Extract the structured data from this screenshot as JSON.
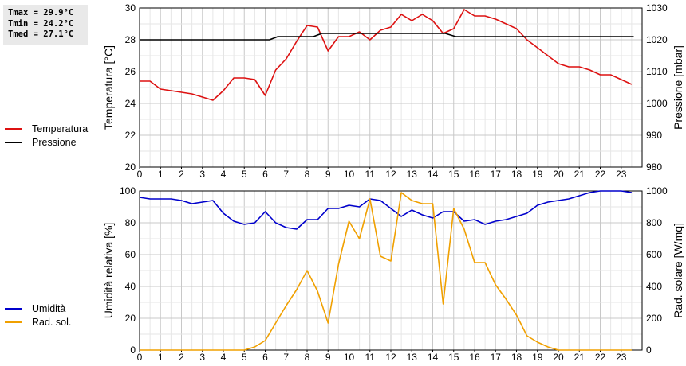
{
  "stats": {
    "tmax": "Tmax = 29.9°C",
    "tmin": "Tmin = 24.2°C",
    "tmed": "Tmed = 27.1°C"
  },
  "legend_top": [
    {
      "label": "Temperatura",
      "color": "#dd1111"
    },
    {
      "label": "Pressione",
      "color": "#000000"
    }
  ],
  "legend_bottom": [
    {
      "label": "Umidità",
      "color": "#0000cc"
    },
    {
      "label": "Rad. sol.",
      "color": "#f0a000"
    }
  ],
  "chart_data": [
    {
      "type": "line",
      "ylabel": "Temperatura [°C]",
      "y2label": "Pressione [mbar]",
      "xlim": [
        0,
        24
      ],
      "xticks": [
        "0",
        "1",
        "2",
        "3",
        "4",
        "5",
        "6",
        "7",
        "8",
        "9",
        "10",
        "11",
        "12",
        "13",
        "14",
        "15",
        "16",
        "17",
        "18",
        "19",
        "20",
        "21",
        "22",
        "23"
      ],
      "ylim": [
        20,
        30
      ],
      "yticks": [
        "20",
        "22",
        "24",
        "26",
        "28",
        "30"
      ],
      "y2lim": [
        980,
        1030
      ],
      "y2ticks": [
        "980",
        "990",
        "1000",
        "1010",
        "1020",
        "1030"
      ],
      "grid": true,
      "series": [
        {
          "name": "Temperatura",
          "axis": "left",
          "color": "#dd1111",
          "x": [
            0,
            0.5,
            1,
            1.5,
            2,
            2.5,
            3,
            3.5,
            4,
            4.5,
            5,
            5.5,
            6,
            6.5,
            7,
            7.5,
            8,
            8.5,
            9,
            9.5,
            10,
            10.5,
            11,
            11.5,
            12,
            12.5,
            13,
            13.5,
            14,
            14.5,
            15,
            15.5,
            16,
            16.5,
            17,
            17.5,
            18,
            18.5,
            19,
            19.5,
            20,
            20.5,
            21,
            21.5,
            22,
            22.5,
            23,
            23.5
          ],
          "values": [
            25.4,
            25.4,
            24.9,
            24.8,
            24.7,
            24.6,
            24.4,
            24.2,
            24.8,
            25.6,
            25.6,
            25.5,
            24.5,
            26.1,
            26.8,
            27.9,
            28.9,
            28.8,
            27.3,
            28.2,
            28.2,
            28.5,
            28.0,
            28.6,
            28.8,
            29.6,
            29.2,
            29.6,
            29.2,
            28.4,
            28.7,
            29.9,
            29.5,
            29.5,
            29.3,
            29.0,
            28.7,
            28.0,
            27.5,
            27.0,
            26.5,
            26.3,
            26.3,
            26.1,
            25.8,
            25.8,
            25.5,
            25.2
          ]
        },
        {
          "name": "Pressione",
          "axis": "right",
          "color": "#000000",
          "x": [
            0,
            6.2,
            6.6,
            8.3,
            8.7,
            14.6,
            15.1,
            23.6
          ],
          "values": [
            1020,
            1020,
            1021,
            1021,
            1022,
            1022,
            1021,
            1021
          ]
        }
      ]
    },
    {
      "type": "line",
      "ylabel": "Umidità relativa [%]",
      "y2label": "Rad. solare [W/mq]",
      "xlim": [
        0,
        24
      ],
      "xticks": [
        "0",
        "1",
        "2",
        "3",
        "4",
        "5",
        "6",
        "7",
        "8",
        "9",
        "10",
        "11",
        "12",
        "13",
        "14",
        "15",
        "16",
        "17",
        "18",
        "19",
        "20",
        "21",
        "22",
        "23"
      ],
      "ylim": [
        0,
        100
      ],
      "yticks": [
        "0",
        "20",
        "40",
        "60",
        "80",
        "100"
      ],
      "y2lim": [
        0,
        1000
      ],
      "y2ticks": [
        "0",
        "200",
        "400",
        "600",
        "800",
        "1000"
      ],
      "grid": true,
      "series": [
        {
          "name": "Umidità",
          "axis": "left",
          "color": "#0000cc",
          "x": [
            0,
            0.5,
            1,
            1.5,
            2,
            2.5,
            3,
            3.5,
            4,
            4.5,
            5,
            5.5,
            6,
            6.5,
            7,
            7.5,
            8,
            8.5,
            9,
            9.5,
            10,
            10.5,
            11,
            11.5,
            12,
            12.5,
            13,
            13.5,
            14,
            14.5,
            15,
            15.5,
            16,
            16.5,
            17,
            17.5,
            18,
            18.5,
            19,
            19.5,
            20,
            20.5,
            21,
            21.5,
            22,
            22.5,
            23,
            23.5
          ],
          "values": [
            96,
            95,
            95,
            95,
            94,
            92,
            93,
            94,
            86,
            81,
            79,
            80,
            87,
            80,
            77,
            76,
            82,
            82,
            89,
            89,
            91,
            90,
            95,
            94,
            89,
            84,
            88,
            85,
            83,
            87,
            87,
            81,
            82,
            79,
            81,
            82,
            84,
            86,
            91,
            93,
            94,
            95,
            97,
            99,
            100,
            100,
            100,
            99
          ]
        },
        {
          "name": "Rad. sol.",
          "axis": "right",
          "color": "#f0a000",
          "x": [
            0,
            0.5,
            1,
            1.5,
            2,
            2.5,
            3,
            3.5,
            4,
            4.5,
            5,
            5.5,
            6,
            6.5,
            7,
            7.5,
            8,
            8.5,
            9,
            9.5,
            10,
            10.5,
            11,
            11.5,
            12,
            12.5,
            13,
            13.5,
            14,
            14.5,
            15,
            15.5,
            16,
            16.5,
            17,
            17.5,
            18,
            18.5,
            19,
            19.5,
            20,
            20.5,
            21,
            21.5,
            22,
            22.5,
            23,
            23.5
          ],
          "values": [
            0,
            0,
            0,
            0,
            0,
            0,
            0,
            0,
            0,
            0,
            0,
            20,
            60,
            170,
            280,
            380,
            500,
            370,
            170,
            540,
            810,
            700,
            950,
            590,
            560,
            990,
            940,
            920,
            920,
            290,
            890,
            760,
            550,
            550,
            410,
            320,
            220,
            90,
            50,
            20,
            0,
            0,
            0,
            0,
            0,
            0,
            0,
            0
          ]
        }
      ]
    }
  ]
}
